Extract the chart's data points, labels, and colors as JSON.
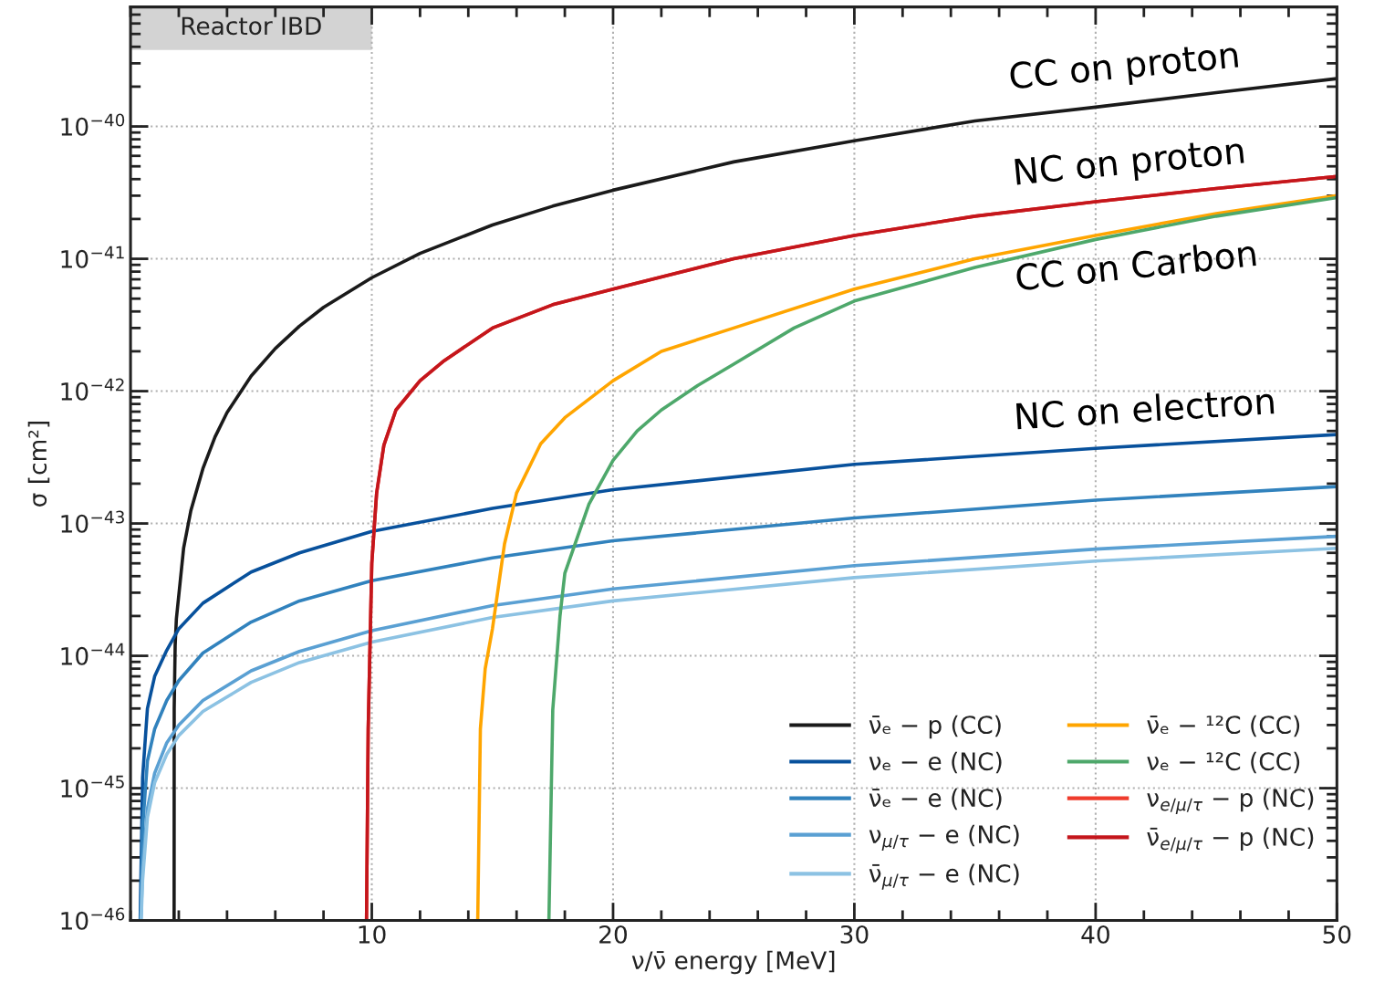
{
  "chart_data": {
    "type": "line",
    "xlabel": "ν/ν̄ energy [MeV]",
    "ylabel": "σ [cm²]",
    "xlim": [
      0,
      50
    ],
    "xticks": [
      10,
      20,
      30,
      40,
      50
    ],
    "ylim": [
      1e-46,
      8e-40
    ],
    "yticks": [
      {
        "value": 1e-46,
        "label": "10$^{−46}$"
      },
      {
        "value": 1e-45,
        "label": "10$^{−45}$"
      },
      {
        "value": 1e-44,
        "label": "10$^{−44}$"
      },
      {
        "value": 1e-43,
        "label": "10$^{−43}$"
      },
      {
        "value": 1e-42,
        "label": "10$^{−42}$"
      },
      {
        "value": 1e-41,
        "label": "10$^{−41}$"
      },
      {
        "value": 1e-40,
        "label": "10$^{−40}$"
      }
    ],
    "log": "y",
    "grid": true,
    "legend": "bottom right",
    "line_style": "solid",
    "marker": "none",
    "bands": [
      {
        "axis": "x",
        "from": 0,
        "to": 10,
        "label": "Reactor IBD",
        "color": "#d3d3d3"
      }
    ],
    "annotations": [
      "CC on proton",
      "NC on proton",
      "CC on Carbon",
      "NC on electron"
    ],
    "series": [
      {
        "name": "ν̄ₑ − p (CC)",
        "color": "#1a1a1a",
        "x": [
          1.806,
          1.81,
          1.85,
          1.9,
          2.2,
          2.5,
          3,
          3.5,
          4,
          5,
          6,
          7,
          8,
          10,
          12,
          15,
          17.5,
          20,
          25,
          30,
          35,
          40,
          45,
          50
        ],
        "values": [
          1e-46,
          4e-45,
          1.2e-44,
          1.9e-44,
          6.5e-44,
          1.25e-43,
          2.6e-43,
          4.5e-43,
          6.9e-43,
          1.3e-42,
          2.1e-42,
          3.1e-42,
          4.3e-42,
          7.2e-42,
          1.1e-41,
          1.8e-41,
          2.5e-41,
          3.3e-41,
          5.4e-41,
          7.8e-41,
          1.1e-40,
          1.4e-40,
          1.8e-40,
          2.3e-40
        ]
      },
      {
        "name": "νₑ − e (NC)",
        "color": "#08519c",
        "x": [
          0.4,
          0.5,
          0.7,
          1,
          1.5,
          2,
          3,
          5,
          7,
          10,
          15,
          20,
          30,
          40,
          50
        ],
        "values": [
          1e-46,
          1.2e-45,
          4e-45,
          7e-45,
          1.1e-44,
          1.6e-44,
          2.5e-44,
          4.3e-44,
          6e-44,
          8.7e-44,
          1.3e-43,
          1.8e-43,
          2.8e-43,
          3.7e-43,
          4.7e-43
        ]
      },
      {
        "name": "ν̄ₑ − e (NC)",
        "color": "#3182bd",
        "x": [
          0.42,
          0.5,
          0.7,
          1,
          1.5,
          2,
          3,
          5,
          7,
          10,
          15,
          20,
          30,
          40,
          50
        ],
        "values": [
          1e-46,
          5e-46,
          1.6e-45,
          2.8e-45,
          4.6e-45,
          6.5e-45,
          1.05e-44,
          1.8e-44,
          2.6e-44,
          3.7e-44,
          5.5e-44,
          7.4e-44,
          1.1e-43,
          1.5e-43,
          1.9e-43
        ]
      },
      {
        "name": "ν$_{μ/τ}$ − e (NC)",
        "color": "#5aa0d3",
        "x": [
          0.43,
          0.5,
          0.7,
          1,
          1.5,
          2,
          3,
          5,
          7,
          10,
          15,
          20,
          30,
          40,
          50
        ],
        "values": [
          1e-46,
          2.5e-46,
          7e-46,
          1.3e-45,
          2.2e-45,
          3e-45,
          4.6e-45,
          7.7e-45,
          1.08e-44,
          1.55e-44,
          2.4e-44,
          3.2e-44,
          4.8e-44,
          6.4e-44,
          8e-44
        ]
      },
      {
        "name": "ν̄$_{μ/τ}$ − e (NC)",
        "color": "#8cc2e3",
        "x": [
          0.44,
          0.5,
          0.7,
          1,
          1.5,
          2,
          3,
          5,
          7,
          10,
          15,
          20,
          30,
          40,
          50
        ],
        "values": [
          1e-46,
          2e-46,
          6e-46,
          1.1e-45,
          1.8e-45,
          2.5e-45,
          3.8e-45,
          6.3e-45,
          8.9e-45,
          1.27e-44,
          1.95e-44,
          2.6e-44,
          3.9e-44,
          5.2e-44,
          6.5e-44
        ]
      },
      {
        "name": "ν̄ₑ − ¹²C (CC)",
        "color": "#ffa500",
        "x": [
          14.39,
          14.5,
          14.7,
          15,
          15.5,
          16,
          17,
          18,
          20,
          22,
          25,
          30,
          35,
          40,
          45,
          50
        ],
        "values": [
          1e-46,
          2.8e-45,
          8e-45,
          1.6e-44,
          7e-44,
          1.7e-43,
          4e-43,
          6.3e-43,
          1.2e-42,
          2e-42,
          3e-42,
          5.9e-42,
          1e-41,
          1.5e-41,
          2.2e-41,
          3e-41
        ]
      },
      {
        "name": "νₑ − ¹²C (CC)",
        "color": "#4ea86b",
        "x": [
          17.34,
          17.5,
          17.8,
          18,
          19,
          20,
          21,
          22,
          23.5,
          25,
          27.5,
          30,
          35,
          40,
          45,
          50
        ],
        "values": [
          1e-46,
          3.9e-45,
          2e-44,
          4.2e-44,
          1.4e-43,
          3e-43,
          5e-43,
          7.2e-43,
          1.1e-42,
          1.6e-42,
          3e-42,
          4.8e-42,
          8.6e-42,
          1.4e-41,
          2.1e-41,
          2.9e-41
        ]
      },
      {
        "name": "ν$_{e/μ/τ}$ − p (NC)",
        "color": "#ef3b2c",
        "x": [
          9.78,
          9.85,
          10,
          10.2,
          10.5,
          11,
          12,
          13,
          15,
          17.5,
          20,
          25,
          30,
          35,
          40,
          45,
          50
        ],
        "values": [
          1e-46,
          2.8e-45,
          5e-44,
          1.7e-43,
          3.9e-43,
          7.2e-43,
          1.2e-42,
          1.7e-42,
          3e-42,
          4.5e-42,
          5.9e-42,
          1e-41,
          1.5e-41,
          2.1e-41,
          2.7e-41,
          3.4e-41,
          4.2e-41
        ]
      },
      {
        "name": "ν̄$_{e/μ/τ}$ − p (NC)",
        "color": "#c4161c",
        "x": [
          9.78,
          9.85,
          10,
          10.2,
          10.5,
          11,
          12,
          13,
          15,
          17.5,
          20,
          25,
          30,
          35,
          40,
          45,
          50
        ],
        "values": [
          1e-46,
          2.8e-45,
          5e-44,
          1.7e-43,
          3.9e-43,
          7.2e-43,
          1.2e-42,
          1.7e-42,
          3e-42,
          4.5e-42,
          5.9e-42,
          1e-41,
          1.5e-41,
          2.1e-41,
          2.7e-41,
          3.4e-41,
          4.2e-41
        ]
      }
    ]
  }
}
